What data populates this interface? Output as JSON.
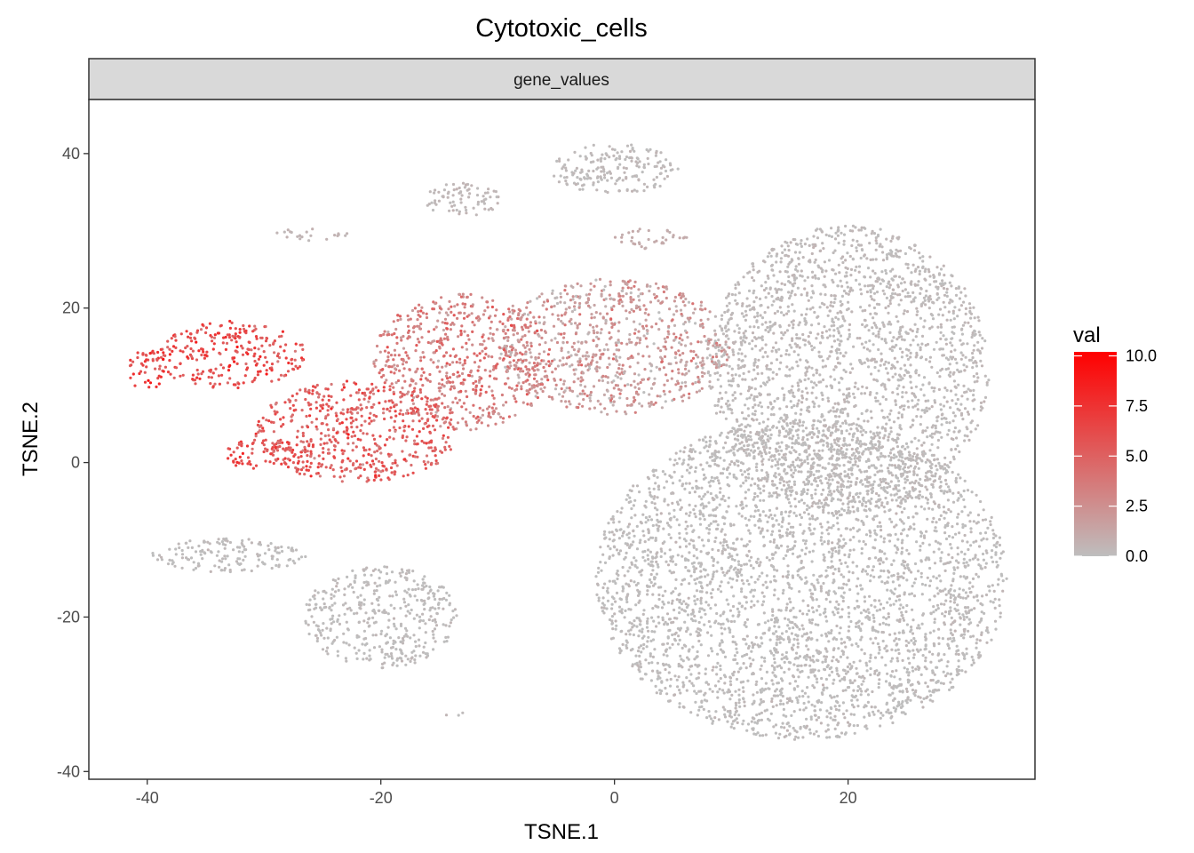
{
  "chart_data": {
    "type": "scatter",
    "title": "Cytotoxic_cells",
    "facet_label": "gene_values",
    "xlabel": "TSNE.1",
    "ylabel": "TSNE.2",
    "xlim": [
      -45,
      36
    ],
    "ylim": [
      -41,
      47
    ],
    "x_ticks": [
      -40,
      -20,
      0,
      20
    ],
    "x_tick_labels": [
      "-40",
      "-20",
      "0",
      "20"
    ],
    "y_ticks": [
      -40,
      -20,
      0,
      20,
      40
    ],
    "y_tick_labels": [
      "-40",
      "-20",
      "0",
      "20",
      "40"
    ],
    "grid": false,
    "legend": {
      "title": "val",
      "placement": "right",
      "range": [
        0,
        10.2
      ],
      "breaks": [
        0,
        2.5,
        5,
        7.5,
        10
      ],
      "labels": [
        "0.0",
        "2.5",
        "5.0",
        "7.5",
        "10.0"
      ],
      "low_color": "#bebebe",
      "high_color": "#ff0000"
    },
    "clusters": [
      {
        "cx": 16,
        "cy": -15,
        "sx": 16,
        "sy": 19,
        "val": 0.1
      },
      {
        "cx": 20,
        "cy": 12,
        "sx": 11,
        "sy": 17,
        "val": 0.2
      },
      {
        "cx": 0,
        "cy": 15,
        "sx": 9,
        "sy": 8,
        "val": 1.8
      },
      {
        "cx": -13,
        "cy": 13,
        "sx": 7,
        "sy": 8,
        "val": 3.5
      },
      {
        "cx": -22,
        "cy": 4,
        "sx": 8,
        "sy": 6,
        "val": 5.2
      },
      {
        "cx": -30,
        "cy": 1,
        "sx": 3,
        "sy": 2,
        "val": 6.2
      },
      {
        "cx": -33,
        "cy": 14,
        "sx": 6,
        "sy": 4,
        "val": 6.0
      },
      {
        "cx": -40,
        "cy": 12,
        "sx": 1.5,
        "sy": 2.5,
        "val": 7.0
      },
      {
        "cx": -20,
        "cy": -20,
        "sx": 6,
        "sy": 6,
        "val": 0.1
      },
      {
        "cx": -33,
        "cy": -12,
        "sx": 6,
        "sy": 2,
        "val": 0.1
      },
      {
        "cx": 0,
        "cy": 38,
        "sx": 5,
        "sy": 3,
        "val": 0.2
      },
      {
        "cx": -13,
        "cy": 34,
        "sx": 3,
        "sy": 2,
        "val": 0.3
      },
      {
        "cx": 3,
        "cy": 29,
        "sx": 3,
        "sy": 1.2,
        "val": 1.0
      },
      {
        "cx": -26,
        "cy": 29.5,
        "sx": 3,
        "sy": 0.7,
        "val": 0.5
      },
      {
        "cx": -14,
        "cy": -32.5,
        "sx": 1.2,
        "sy": 0.3,
        "val": 0.1
      }
    ],
    "n_points": 9000,
    "seed": 7
  }
}
